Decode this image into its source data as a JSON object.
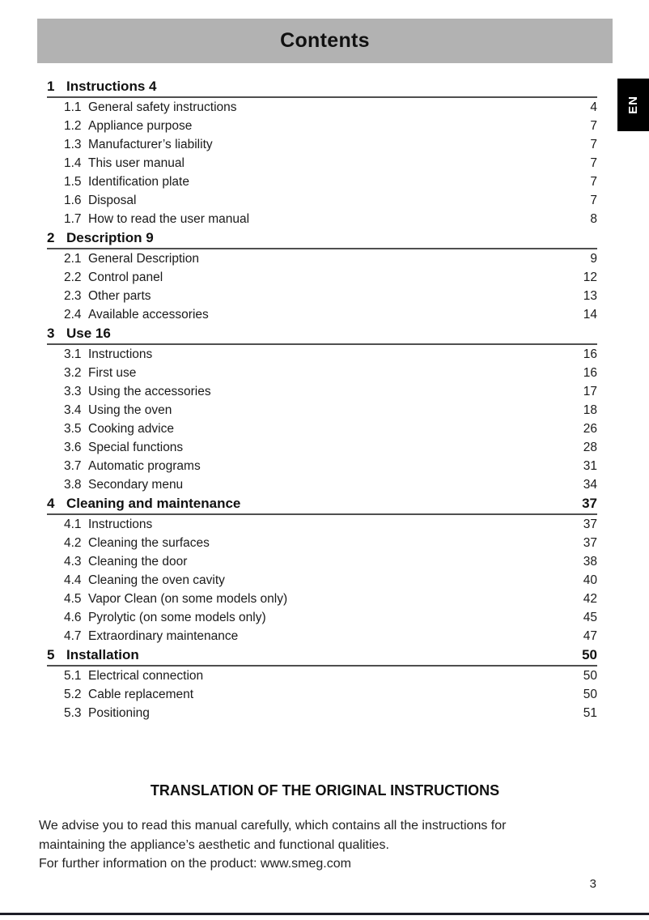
{
  "page": {
    "header_title": "Contents",
    "language_tab": "EN",
    "page_number": "3",
    "footer_heading": "TRANSLATION OF THE ORIGINAL INSTRUCTIONS",
    "footer_paragraph": "We advise you to read this manual carefully, which contains all the instructions for maintaining the appliance’s aesthetic and functional qualities.",
    "footer_info": "For further information on the product: www.smeg.com"
  },
  "theme": {
    "header_bg": "#b2b2b2",
    "tab_bg": "#000000",
    "tab_text": "#ffffff",
    "rule": "#4f4f4f",
    "bottom_rule": "#1d1d27",
    "text": "#1a1a1a"
  },
  "toc": {
    "sections": [
      {
        "number": "1",
        "title": "Instructions",
        "page": "4",
        "page_style": "inline",
        "entries": [
          {
            "number": "1.1",
            "title": "General safety instructions",
            "page": "4"
          },
          {
            "number": "1.2",
            "title": "Appliance purpose",
            "page": "7"
          },
          {
            "number": "1.3",
            "title": "Manufacturer’s liability",
            "page": "7"
          },
          {
            "number": "1.4",
            "title": "This user manual",
            "page": "7"
          },
          {
            "number": "1.5",
            "title": "Identification plate",
            "page": "7"
          },
          {
            "number": "1.6",
            "title": "Disposal",
            "page": "7"
          },
          {
            "number": "1.7",
            "title": "How to read the user manual",
            "page": "8"
          }
        ]
      },
      {
        "number": "2",
        "title": "Description",
        "page": "9",
        "page_style": "inline",
        "entries": [
          {
            "number": "2.1",
            "title": "General Description",
            "page": "9"
          },
          {
            "number": "2.2",
            "title": "Control panel",
            "page": "12"
          },
          {
            "number": "2.3",
            "title": "Other parts",
            "page": "13"
          },
          {
            "number": "2.4",
            "title": "Available accessories",
            "page": "14"
          }
        ]
      },
      {
        "number": "3",
        "title": "Use",
        "page": "16",
        "page_style": "inline",
        "entries": [
          {
            "number": "3.1",
            "title": "Instructions",
            "page": "16"
          },
          {
            "number": "3.2",
            "title": "First use",
            "page": "16"
          },
          {
            "number": "3.3",
            "title": "Using the accessories",
            "page": "17"
          },
          {
            "number": "3.4",
            "title": "Using the oven",
            "page": "18"
          },
          {
            "number": "3.5",
            "title": "Cooking advice",
            "page": "26"
          },
          {
            "number": "3.6",
            "title": "Special functions",
            "page": "28"
          },
          {
            "number": "3.7",
            "title": "Automatic programs",
            "page": "31"
          },
          {
            "number": "3.8",
            "title": "Secondary menu",
            "page": "34"
          }
        ]
      },
      {
        "number": "4",
        "title": "Cleaning and maintenance",
        "page": "37",
        "page_style": "right",
        "entries": [
          {
            "number": "4.1",
            "title": "Instructions",
            "page": "37"
          },
          {
            "number": "4.2",
            "title": "Cleaning the surfaces",
            "page": "37"
          },
          {
            "number": "4.3",
            "title": "Cleaning the door",
            "page": "38"
          },
          {
            "number": "4.4",
            "title": "Cleaning the oven cavity",
            "page": "40"
          },
          {
            "number": "4.5",
            "title": "Vapor Clean (on some models only)",
            "page": "42"
          },
          {
            "number": "4.6",
            "title": "Pyrolytic (on some models only)",
            "page": "45"
          },
          {
            "number": "4.7",
            "title": "Extraordinary maintenance",
            "page": "47"
          }
        ]
      },
      {
        "number": "5",
        "title": "Installation",
        "page": "50",
        "page_style": "right",
        "entries": [
          {
            "number": "5.1",
            "title": "Electrical connection",
            "page": "50"
          },
          {
            "number": "5.2",
            "title": "Cable replacement",
            "page": "50"
          },
          {
            "number": "5.3",
            "title": "Positioning",
            "page": "51"
          }
        ]
      }
    ]
  }
}
